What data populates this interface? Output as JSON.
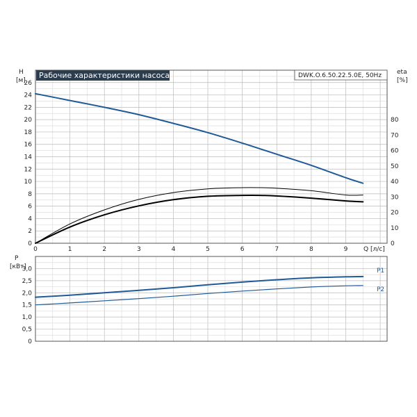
{
  "chart_data": [
    {
      "type": "line",
      "title": "Рабочие характеристики насоса",
      "model": "DWK.O.6.50.22.5.0E, 50Hz",
      "xlabel": "Q [л/с]",
      "ylabel_left_name": "H",
      "ylabel_left_unit": "[м]",
      "ylabel_right_name": "eta",
      "ylabel_right_unit": "[%]",
      "xlim": [
        0,
        10.2
      ],
      "ylim": [
        0,
        28
      ],
      "ylim_right": [
        0,
        112
      ],
      "x_ticks": [
        0,
        1,
        2,
        3,
        4,
        5,
        6,
        7,
        8,
        9
      ],
      "y_ticks": [
        0,
        2,
        4,
        6,
        8,
        10,
        12,
        14,
        16,
        18,
        20,
        22,
        24,
        26
      ],
      "y_right_ticks": [
        0,
        10,
        20,
        30,
        40,
        50,
        60,
        70,
        80
      ],
      "grid": true,
      "series": [
        {
          "axis": "left",
          "color": "#1f5a96",
          "x": [
            0,
            1,
            2,
            3,
            4,
            5,
            6,
            7,
            8,
            9,
            9.5
          ],
          "values": [
            24.2,
            23.1,
            22,
            20.8,
            19.4,
            17.9,
            16.2,
            14.4,
            12.6,
            10.6,
            9.7
          ]
        },
        {
          "axis": "right",
          "color": "#000000",
          "x": [
            0,
            1,
            2,
            3,
            4,
            5,
            6,
            6.5,
            7,
            8,
            9,
            9.5
          ],
          "values": [
            0,
            12.5,
            21.6,
            28.4,
            32.8,
            35.2,
            36,
            36,
            35.6,
            34,
            31.2,
            31.2
          ]
        },
        {
          "axis": "right",
          "color": "#000000",
          "x": [
            0,
            1,
            2,
            3,
            4,
            5,
            6,
            6.5,
            7,
            8,
            9,
            9.5
          ],
          "values": [
            0,
            10.5,
            18.4,
            24.2,
            28.2,
            30.4,
            31,
            31,
            30.6,
            29.2,
            27.4,
            26.8
          ]
        }
      ]
    },
    {
      "type": "line",
      "ylabel_name": "P",
      "ylabel_unit": "[кВт]",
      "xlim": [
        0,
        10.2
      ],
      "ylim": [
        0,
        3.5
      ],
      "y_ticks": [
        "0",
        "0,5",
        "1,0",
        "1,5",
        "2,0",
        "2,5",
        "3,0"
      ],
      "y_tick_values": [
        0,
        0.5,
        1.0,
        1.5,
        2.0,
        2.5,
        3.0
      ],
      "grid": true,
      "series": [
        {
          "name": "P1",
          "color": "#1f5a96",
          "x": [
            0,
            1,
            2,
            3,
            4,
            5,
            6,
            7,
            8,
            9,
            9.5
          ],
          "values": [
            1.82,
            1.9,
            2.0,
            2.1,
            2.21,
            2.33,
            2.44,
            2.54,
            2.62,
            2.66,
            2.67
          ]
        },
        {
          "name": "P2",
          "color": "#1f5a96",
          "x": [
            0,
            1,
            2,
            3,
            4,
            5,
            6,
            7,
            8,
            9,
            9.5
          ],
          "values": [
            1.5,
            1.58,
            1.67,
            1.76,
            1.86,
            1.97,
            2.07,
            2.16,
            2.24,
            2.29,
            2.3
          ]
        }
      ]
    }
  ]
}
